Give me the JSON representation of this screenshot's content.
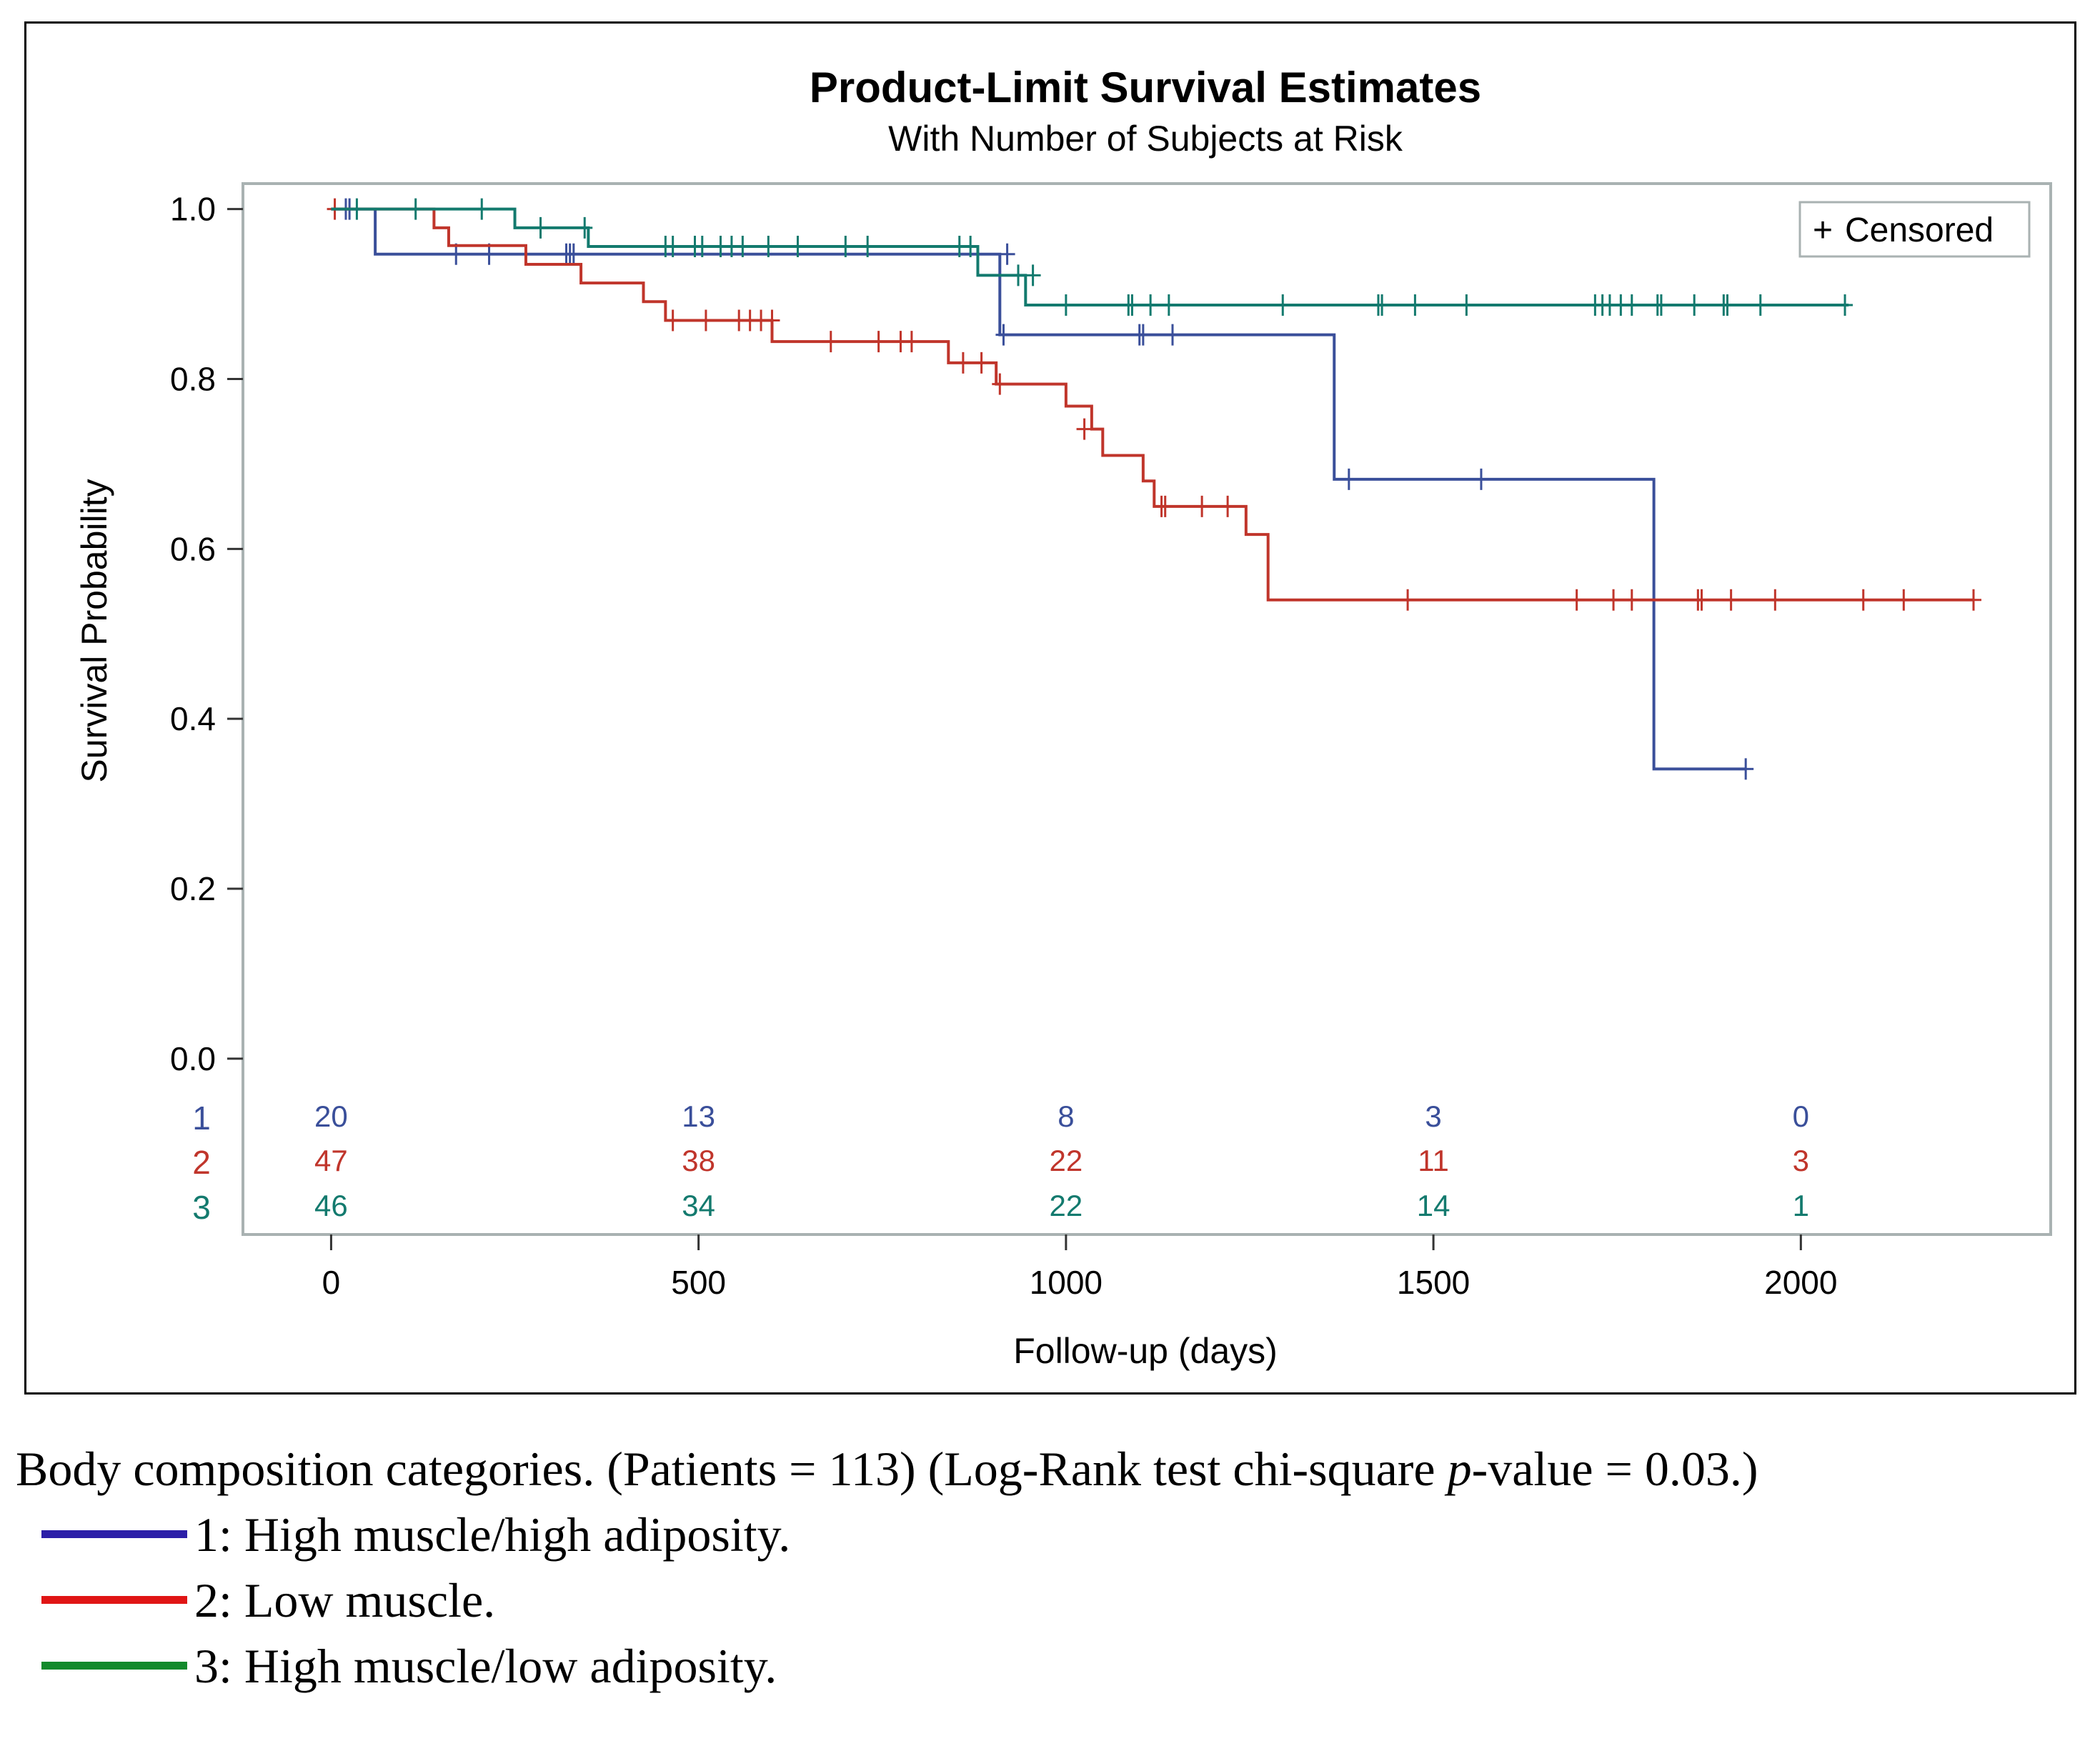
{
  "colors": {
    "g1": "#3a4f9a",
    "g2": "#c0352b",
    "g3": "#137a6e",
    "frame": "#a9b2b2"
  },
  "chart_data": {
    "type": "line",
    "subtype": "kaplan-meier step",
    "title": "Product-Limit Survival Estimates",
    "subtitle": "With Number of Subjects at Risk",
    "xlabel": "Follow-up (days)",
    "ylabel": "Survival Probability",
    "xlim": [
      -120,
      2340
    ],
    "ylim": [
      -0.207,
      1.03
    ],
    "xticks": [
      0,
      500,
      1000,
      1500,
      2000
    ],
    "xtick_labels": [
      "0",
      "500",
      "1000",
      "1500",
      "2000"
    ],
    "yticks": [
      0.0,
      0.2,
      0.4,
      0.6,
      0.8,
      1.0
    ],
    "ytick_labels": [
      "0.0",
      "0.2",
      "0.4",
      "0.6",
      "0.8",
      "1.0"
    ],
    "legend": {
      "marker": "+",
      "label": "Censored",
      "placement": "top-right"
    },
    "series": [
      {
        "name": "1",
        "color_key": "g1",
        "steps": [
          [
            0,
            1.0
          ],
          [
            60,
            0.947
          ],
          [
            910,
            0.852
          ],
          [
            1365,
            0.682
          ],
          [
            1800,
            0.341
          ],
          [
            1925,
            0.341
          ]
        ],
        "censored": [
          [
            20,
            1.0
          ],
          [
            25,
            1.0
          ],
          [
            170,
            0.947
          ],
          [
            215,
            0.947
          ],
          [
            320,
            0.947
          ],
          [
            325,
            0.947
          ],
          [
            330,
            0.947
          ],
          [
            920,
            0.947
          ],
          [
            915,
            0.852
          ],
          [
            1100,
            0.852
          ],
          [
            1105,
            0.852
          ],
          [
            1145,
            0.852
          ],
          [
            1385,
            0.682
          ],
          [
            1565,
            0.682
          ],
          [
            1925,
            0.341
          ]
        ]
      },
      {
        "name": "2",
        "color_key": "g2",
        "steps": [
          [
            0,
            1.0
          ],
          [
            140,
            0.978
          ],
          [
            160,
            0.957
          ],
          [
            265,
            0.935
          ],
          [
            340,
            0.913
          ],
          [
            425,
            0.891
          ],
          [
            455,
            0.869
          ],
          [
            600,
            0.844
          ],
          [
            840,
            0.819
          ],
          [
            905,
            0.794
          ],
          [
            1000,
            0.768
          ],
          [
            1035,
            0.741
          ],
          [
            1050,
            0.71
          ],
          [
            1105,
            0.68
          ],
          [
            1120,
            0.65
          ],
          [
            1245,
            0.617
          ],
          [
            1275,
            0.584
          ],
          [
            1275,
            0.54
          ],
          [
            2235,
            0.54
          ]
        ],
        "censored": [
          [
            5,
            1.0
          ],
          [
            465,
            0.869
          ],
          [
            510,
            0.869
          ],
          [
            555,
            0.869
          ],
          [
            570,
            0.869
          ],
          [
            585,
            0.869
          ],
          [
            600,
            0.869
          ],
          [
            680,
            0.844
          ],
          [
            745,
            0.844
          ],
          [
            775,
            0.844
          ],
          [
            790,
            0.844
          ],
          [
            860,
            0.819
          ],
          [
            885,
            0.819
          ],
          [
            910,
            0.794
          ],
          [
            1025,
            0.741
          ],
          [
            1130,
            0.65
          ],
          [
            1135,
            0.65
          ],
          [
            1185,
            0.65
          ],
          [
            1220,
            0.65
          ],
          [
            1465,
            0.54
          ],
          [
            1695,
            0.54
          ],
          [
            1745,
            0.54
          ],
          [
            1770,
            0.54
          ],
          [
            1860,
            0.54
          ],
          [
            1865,
            0.54
          ],
          [
            1905,
            0.54
          ],
          [
            1965,
            0.54
          ],
          [
            2085,
            0.54
          ],
          [
            2140,
            0.54
          ],
          [
            2235,
            0.54
          ]
        ]
      },
      {
        "name": "3",
        "color_key": "g3",
        "steps": [
          [
            0,
            1.0
          ],
          [
            250,
            0.978
          ],
          [
            350,
            0.956
          ],
          [
            880,
            0.922
          ],
          [
            945,
            0.887
          ],
          [
            2065,
            0.887
          ]
        ],
        "censored": [
          [
            35,
            1.0
          ],
          [
            115,
            1.0
          ],
          [
            205,
            1.0
          ],
          [
            285,
            0.978
          ],
          [
            345,
            0.978
          ],
          [
            455,
            0.956
          ],
          [
            465,
            0.956
          ],
          [
            495,
            0.956
          ],
          [
            505,
            0.956
          ],
          [
            530,
            0.956
          ],
          [
            545,
            0.956
          ],
          [
            560,
            0.956
          ],
          [
            595,
            0.956
          ],
          [
            635,
            0.956
          ],
          [
            700,
            0.956
          ],
          [
            730,
            0.956
          ],
          [
            855,
            0.956
          ],
          [
            870,
            0.956
          ],
          [
            935,
            0.922
          ],
          [
            955,
            0.922
          ],
          [
            1000,
            0.887
          ],
          [
            1085,
            0.887
          ],
          [
            1090,
            0.887
          ],
          [
            1115,
            0.887
          ],
          [
            1140,
            0.887
          ],
          [
            1295,
            0.887
          ],
          [
            1425,
            0.887
          ],
          [
            1430,
            0.887
          ],
          [
            1475,
            0.887
          ],
          [
            1545,
            0.887
          ],
          [
            1720,
            0.887
          ],
          [
            1730,
            0.887
          ],
          [
            1740,
            0.887
          ],
          [
            1755,
            0.887
          ],
          [
            1770,
            0.887
          ],
          [
            1805,
            0.887
          ],
          [
            1810,
            0.887
          ],
          [
            1855,
            0.887
          ],
          [
            1895,
            0.887
          ],
          [
            1900,
            0.887
          ],
          [
            1945,
            0.887
          ],
          [
            2060,
            0.887
          ]
        ]
      }
    ],
    "risk_table": {
      "times": [
        0,
        500,
        1000,
        1500,
        2000
      ],
      "rows": [
        {
          "group": "1",
          "color_key": "g1",
          "counts": [
            "20",
            "13",
            "8",
            "3",
            "0"
          ]
        },
        {
          "group": "2",
          "color_key": "g2",
          "counts": [
            "47",
            "38",
            "22",
            "11",
            "3"
          ]
        },
        {
          "group": "3",
          "color_key": "g3",
          "counts": [
            "46",
            "34",
            "22",
            "14",
            "1"
          ]
        }
      ]
    }
  },
  "caption": {
    "main_before": "Body composition categories. (Patients = 113) (Log-Rank test chi-square ",
    "main_italic": "p",
    "main_after": "-value = 0.03.)",
    "items": [
      {
        "label": "1: High muscle/high adiposity.",
        "color": "#2c1fa8"
      },
      {
        "label": "2: Low muscle.",
        "color": "#e01515"
      },
      {
        "label": "3: High muscle/low adiposity.",
        "color": "#138a2c"
      }
    ]
  }
}
